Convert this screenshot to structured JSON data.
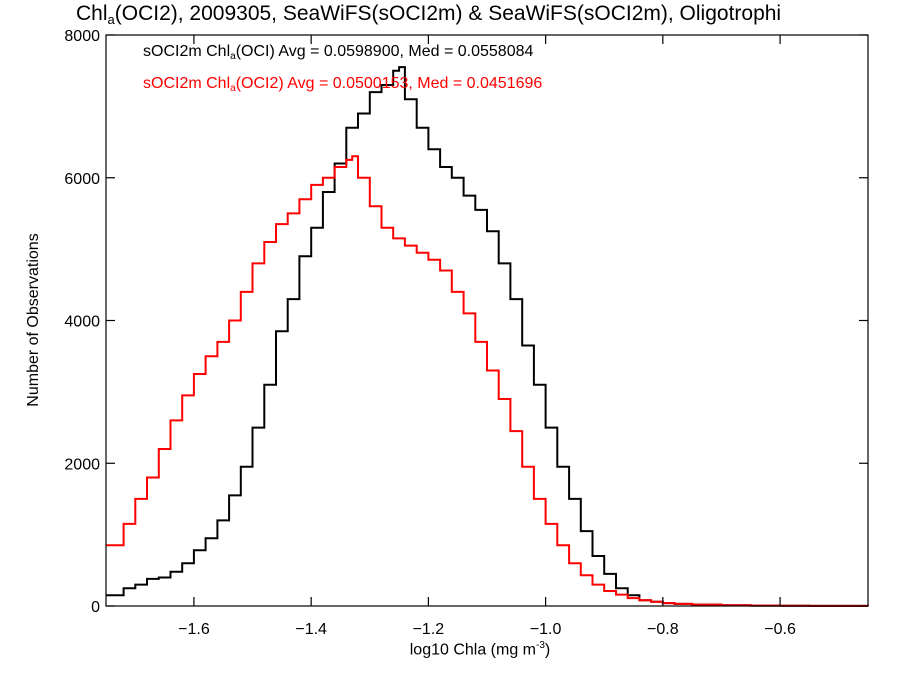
{
  "title": {
    "prefix": "Chl",
    "sub": "a",
    "rest": "(OCI2), 2009305, SeaWiFS(sOCI2m) & SeaWiFS(sOCI2m), Oligotrophi"
  },
  "legend": [
    {
      "pre": "sOCI2m Chl",
      "sub": "a",
      "post": "(OCI) Avg = 0.0598900, Med = 0.0558084",
      "color": "#000000"
    },
    {
      "pre": "sOCI2m Chl",
      "sub": "a",
      "post": "(OCI2) Avg = 0.0500153, Med = 0.0451696",
      "color": "#ff0000"
    }
  ],
  "xlabel": {
    "text": "log10 Chla (mg m",
    "sup": "-3",
    "close": ")"
  },
  "ylabel": "Number of Observations",
  "chart_data": {
    "type": "line",
    "step": true,
    "xlim": [
      -1.75,
      -0.45
    ],
    "ylim": [
      0,
      8000
    ],
    "x_ticks": [
      -1.6,
      -1.4,
      -1.2,
      -1.0,
      -0.8,
      -0.6
    ],
    "x_tick_labels": [
      "−1.6",
      "−1.4",
      "−1.2",
      "−1.0",
      "−0.8",
      "−0.6"
    ],
    "y_ticks": [
      0,
      2000,
      4000,
      6000,
      8000
    ],
    "y_tick_labels": [
      "0",
      "2000",
      "4000",
      "6000",
      "8000"
    ],
    "grid": false,
    "series": [
      {
        "color": "#000000",
        "x": [
          -1.75,
          -1.72,
          -1.7,
          -1.68,
          -1.66,
          -1.64,
          -1.62,
          -1.6,
          -1.58,
          -1.56,
          -1.54,
          -1.52,
          -1.5,
          -1.48,
          -1.46,
          -1.44,
          -1.42,
          -1.4,
          -1.38,
          -1.36,
          -1.34,
          -1.32,
          -1.3,
          -1.28,
          -1.26,
          -1.25,
          -1.24,
          -1.22,
          -1.2,
          -1.18,
          -1.16,
          -1.14,
          -1.12,
          -1.1,
          -1.08,
          -1.06,
          -1.04,
          -1.02,
          -1.0,
          -0.98,
          -0.96,
          -0.94,
          -0.92,
          -0.9,
          -0.88,
          -0.86,
          -0.84,
          -0.82,
          -0.8,
          -0.78,
          -0.75,
          -0.7,
          -0.65,
          -0.6,
          -0.55,
          -0.5,
          -0.45
        ],
        "y": [
          150,
          250,
          300,
          380,
          400,
          480,
          600,
          780,
          950,
          1200,
          1550,
          1950,
          2500,
          3100,
          3850,
          4300,
          4900,
          5300,
          5800,
          6200,
          6700,
          6900,
          7200,
          7300,
          7500,
          7550,
          7100,
          6700,
          6400,
          6150,
          6000,
          5750,
          5550,
          5250,
          4800,
          4300,
          3650,
          3100,
          2500,
          1950,
          1500,
          1050,
          700,
          450,
          250,
          150,
          80,
          60,
          40,
          30,
          20,
          10,
          5,
          3,
          2,
          1,
          0
        ]
      },
      {
        "color": "#ff0000",
        "x": [
          -1.75,
          -1.72,
          -1.7,
          -1.68,
          -1.66,
          -1.64,
          -1.62,
          -1.6,
          -1.58,
          -1.56,
          -1.54,
          -1.52,
          -1.5,
          -1.48,
          -1.46,
          -1.44,
          -1.42,
          -1.4,
          -1.38,
          -1.36,
          -1.34,
          -1.33,
          -1.32,
          -1.3,
          -1.28,
          -1.26,
          -1.24,
          -1.22,
          -1.2,
          -1.18,
          -1.16,
          -1.14,
          -1.12,
          -1.1,
          -1.08,
          -1.06,
          -1.04,
          -1.02,
          -1.0,
          -0.98,
          -0.96,
          -0.94,
          -0.92,
          -0.9,
          -0.88,
          -0.86,
          -0.84,
          -0.82,
          -0.8,
          -0.78,
          -0.75,
          -0.7,
          -0.65,
          -0.6,
          -0.55,
          -0.5,
          -0.45
        ],
        "y": [
          850,
          1150,
          1500,
          1800,
          2200,
          2600,
          2950,
          3250,
          3500,
          3700,
          4000,
          4400,
          4800,
          5100,
          5350,
          5500,
          5700,
          5900,
          6000,
          6150,
          6250,
          6300,
          6000,
          5600,
          5300,
          5150,
          5050,
          4950,
          4850,
          4700,
          4400,
          4100,
          3700,
          3300,
          2900,
          2450,
          1950,
          1500,
          1150,
          850,
          600,
          430,
          300,
          210,
          160,
          110,
          80,
          60,
          40,
          30,
          20,
          10,
          5,
          3,
          2,
          1,
          0
        ]
      }
    ]
  }
}
